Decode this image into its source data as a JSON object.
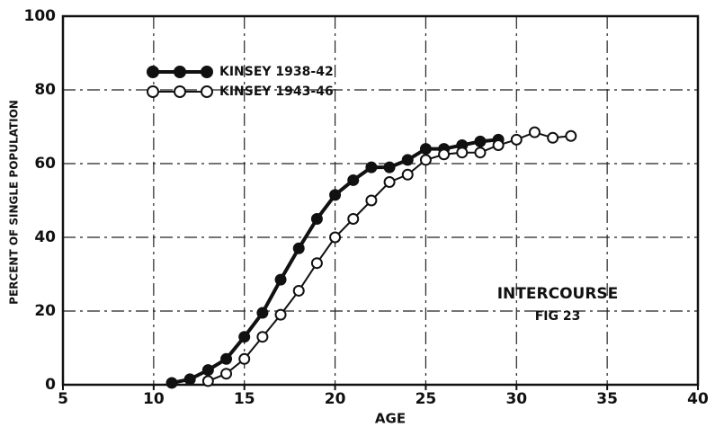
{
  "chart_data": {
    "type": "line",
    "xlabel": "AGE",
    "ylabel": "PERCENT OF SINGLE POPULATION",
    "annotations": [
      "INTERCOURSE",
      "FIG 23"
    ],
    "xlim": [
      5,
      40
    ],
    "xticks": [
      5,
      10,
      15,
      20,
      25,
      30,
      35,
      40
    ],
    "ylim": [
      0,
      100
    ],
    "yticks": [
      0,
      20,
      40,
      60,
      80,
      100
    ],
    "grid": true,
    "legend": "upper-left",
    "series": [
      {
        "name": "KINSEY 1938-42",
        "color": "#111111",
        "marker": "filled",
        "x": [
          11,
          12,
          13,
          14,
          15,
          16,
          17,
          18,
          19,
          20,
          21,
          22,
          23,
          24,
          25,
          26,
          27,
          28,
          29
        ],
        "values": [
          0.5,
          1.5,
          4,
          7,
          13,
          19.5,
          28.5,
          37,
          45,
          51.5,
          55.5,
          59,
          59,
          61,
          64,
          64,
          65,
          66,
          66.5
        ]
      },
      {
        "name": "KINSEY 1943-46",
        "color": "#111111",
        "marker": "open",
        "x": [
          13,
          14,
          15,
          16,
          17,
          18,
          19,
          20,
          21,
          22,
          23,
          24,
          25,
          26,
          27,
          28,
          29,
          30,
          31,
          32,
          33
        ],
        "values": [
          1,
          3,
          7,
          13,
          19,
          25.5,
          33,
          40,
          45,
          50,
          55,
          57,
          61,
          62.5,
          63,
          63,
          65,
          66.5,
          68.5,
          67,
          67.5
        ]
      }
    ]
  }
}
